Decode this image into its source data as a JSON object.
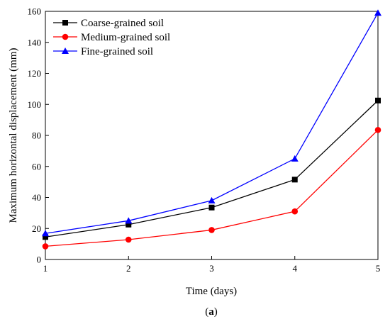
{
  "chart_data": {
    "type": "line",
    "xlabel": "Time (days)",
    "ylabel": "Maximum horizontal displacement (mm)",
    "x": [
      1,
      2,
      3,
      4,
      5
    ],
    "xlim": [
      1,
      5
    ],
    "ylim": [
      0,
      160
    ],
    "xticks": [
      1,
      2,
      3,
      4,
      5
    ],
    "yticks": [
      0,
      20,
      40,
      60,
      80,
      100,
      120,
      140,
      160
    ],
    "grid": false,
    "legend_position": "top-left",
    "series": [
      {
        "name": "Coarse-grained soil",
        "values": [
          14.5,
          22.5,
          33.5,
          51.5,
          102.5
        ],
        "color": "#000000",
        "marker": "square"
      },
      {
        "name": "Medium-grained soil",
        "values": [
          8.5,
          12.8,
          19.0,
          31.0,
          83.5
        ],
        "color": "#ff0000",
        "marker": "circle"
      },
      {
        "name": "Fine-grained soil",
        "values": [
          16.8,
          25.0,
          38.0,
          65.0,
          159.0
        ],
        "color": "#0000ff",
        "marker": "triangle"
      }
    ],
    "caption_prefix": "(",
    "caption_letter": "a",
    "caption_suffix": ")"
  }
}
